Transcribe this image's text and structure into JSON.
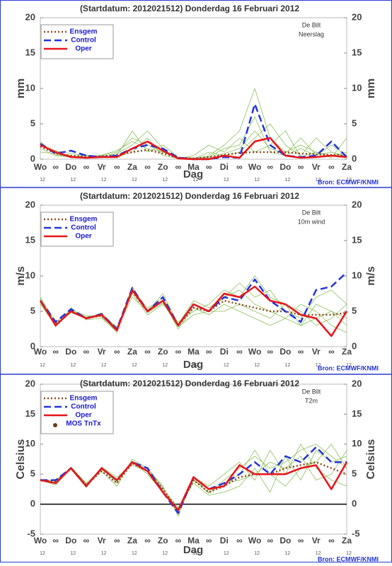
{
  "chart_data": [
    {
      "type": "line",
      "title": "(Startdatum: 2012021512)   Donderdag 16 Februari 2012",
      "location": "De Bilt",
      "variable": "Neerslag",
      "ylabel": "mm",
      "xlabel": "Dag",
      "source": "Bron: ECMWF/KNMI",
      "categories": [
        "Wo",
        "∞",
        "Do",
        "∞",
        "Vr",
        "∞",
        "Za",
        "∞",
        "Zo",
        "∞",
        "Ma",
        "∞",
        "Di",
        "∞",
        "Wo",
        "∞",
        "Do",
        "∞",
        "Vr",
        "∞",
        "Za"
      ],
      "hours": [
        "12",
        null,
        "12",
        null,
        "12",
        null,
        "12",
        null,
        "12",
        null,
        "12",
        null,
        "12",
        null,
        "12",
        null,
        "12",
        null,
        "12",
        null,
        "12"
      ],
      "ylim": [
        0,
        20
      ],
      "yticks": [
        0,
        5,
        10,
        15,
        20
      ],
      "members": {
        "color": "#8cbf5c",
        "values": [
          [
            2,
            1,
            0.5,
            0.3,
            0.5,
            1,
            3,
            2,
            1,
            0.2,
            0,
            0.5,
            2,
            4,
            10,
            3,
            1,
            2,
            1,
            0.5,
            1
          ],
          [
            1.5,
            0.5,
            0.3,
            0.2,
            0.3,
            0.8,
            2,
            4,
            1.5,
            0,
            0,
            1,
            0.5,
            1,
            3,
            5,
            2,
            0.5,
            3,
            1,
            0.3
          ],
          [
            2,
            1.2,
            0.8,
            0.5,
            0.2,
            0.5,
            4,
            1,
            2,
            0.3,
            0.2,
            0.3,
            1.5,
            2,
            6,
            1,
            0.5,
            1.5,
            0.5,
            2,
            0.5
          ],
          [
            1,
            0.8,
            0.2,
            0.6,
            0.4,
            0.3,
            1,
            3,
            0.5,
            0.1,
            0.5,
            2,
            1,
            3,
            1,
            2,
            4,
            0.3,
            1,
            0.2,
            3
          ],
          [
            2.5,
            0.6,
            0.4,
            0.2,
            0.6,
            1.2,
            2.5,
            1.5,
            1,
            0.2,
            0.1,
            0.2,
            0.8,
            1.5,
            4,
            1.5,
            0.8,
            3,
            0.6,
            1,
            0.4
          ]
        ]
      },
      "series": [
        {
          "name": "Ensgem",
          "color": "#8b4a1c",
          "dash": "dotted",
          "values": [
            1.8,
            0.8,
            0.5,
            0.4,
            0.4,
            0.6,
            1,
            1.3,
            0.8,
            0.2,
            0.1,
            0.3,
            0.6,
            0.9,
            1,
            1,
            1,
            0.8,
            0.7,
            0.6,
            0.5
          ]
        },
        {
          "name": "Control",
          "color": "#2233dd",
          "dash": "dashed",
          "values": [
            2.2,
            0.8,
            1.2,
            0.5,
            0.3,
            0.5,
            1.5,
            2,
            1.5,
            0.2,
            0,
            0,
            0.3,
            0.2,
            7.8,
            2,
            0.5,
            0.3,
            0.5,
            2.5,
            0.3
          ]
        },
        {
          "name": "Oper",
          "color": "#e8141a",
          "dash": "solid",
          "values": [
            2,
            1,
            0.3,
            0.2,
            0.3,
            0.3,
            1.5,
            2.5,
            1.2,
            0.1,
            0,
            0,
            0.5,
            0.2,
            2.5,
            3,
            0.5,
            0.2,
            0.3,
            0.5,
            0.3
          ]
        }
      ]
    },
    {
      "type": "line",
      "title": "(Startdatum: 2012021512)   Donderdag 16 Februari 2012",
      "location": "De Bilt",
      "variable": "10m wind",
      "ylabel": "m/s",
      "xlabel": "Dag",
      "source": "Bron: ECMWF/KNMI",
      "categories": [
        "Wo",
        "∞",
        "Do",
        "∞",
        "Vr",
        "∞",
        "Za",
        "∞",
        "Zo",
        "∞",
        "Ma",
        "∞",
        "Di",
        "∞",
        "Wo",
        "∞",
        "Do",
        "∞",
        "Vr",
        "∞",
        "Za"
      ],
      "hours": [
        "12",
        null,
        "12",
        null,
        "12",
        null,
        "12",
        null,
        "12",
        null,
        "12",
        null,
        "12",
        null,
        "12",
        null,
        "12",
        null,
        "12",
        null,
        "12"
      ],
      "ylim": [
        0,
        20
      ],
      "yticks": [
        0,
        5,
        10,
        15,
        20
      ],
      "members": {
        "color": "#8cbf5c",
        "values": [
          [
            6,
            3,
            5,
            4,
            4.5,
            2.5,
            8.5,
            5,
            7,
            3,
            6,
            5,
            7,
            8,
            6,
            5,
            4,
            3,
            6,
            5,
            4
          ],
          [
            7,
            3.5,
            5,
            4.2,
            4.5,
            2.8,
            7.5,
            4.5,
            6,
            3.5,
            5,
            6,
            8,
            7,
            10,
            7,
            6,
            5,
            3,
            4,
            6
          ],
          [
            6.5,
            2.8,
            5.5,
            3.8,
            4,
            2.2,
            8,
            5.5,
            6.5,
            2.5,
            5.5,
            4.5,
            6,
            5,
            4,
            3,
            4,
            6,
            5,
            3,
            2
          ],
          [
            6.2,
            3.2,
            4.8,
            4,
            4.8,
            2.5,
            7,
            5,
            7.5,
            3.2,
            6.5,
            5.5,
            7,
            9,
            7,
            8,
            5,
            4,
            7,
            8,
            6
          ],
          [
            6.8,
            3,
            5.2,
            4.4,
            4.2,
            2,
            8.2,
            4.8,
            6.2,
            2.8,
            4.5,
            5,
            5,
            6,
            5,
            4,
            6,
            3,
            4,
            5,
            3
          ]
        ]
      },
      "series": [
        {
          "name": "Ensgem",
          "color": "#8b4a1c",
          "dash": "dotted",
          "values": [
            6.5,
            3.2,
            5,
            4,
            4.4,
            2.5,
            7.8,
            5,
            6.5,
            3,
            5.5,
            5,
            6.5,
            6,
            5.5,
            5,
            5,
            4.5,
            4.5,
            4.5,
            4.8
          ]
        },
        {
          "name": "Control",
          "color": "#2233dd",
          "dash": "dashed",
          "values": [
            6.5,
            3.5,
            5.3,
            4,
            4.6,
            2.5,
            8.3,
            5,
            7,
            3,
            6,
            5,
            7,
            6.5,
            9.5,
            6.5,
            5,
            3.5,
            8,
            8.5,
            10.5
          ]
        },
        {
          "name": "Oper",
          "color": "#e8141a",
          "dash": "solid",
          "values": [
            6.5,
            3,
            5,
            4,
            4.5,
            2.3,
            8,
            5,
            6.5,
            3,
            6,
            5,
            7.5,
            7,
            8.5,
            6.5,
            6,
            4.5,
            4,
            1.5,
            5
          ]
        }
      ]
    },
    {
      "type": "line",
      "title": "(Startdatum: 2012021512)   Donderdag 16 Februari 2012",
      "location": "De Bilt",
      "variable": "T2m",
      "ylabel": "Celsius",
      "xlabel": "Dag",
      "source": "Bron: ECMWF/KNMI",
      "categories": [
        "Wo",
        "∞",
        "Do",
        "∞",
        "Vr",
        "∞",
        "Za",
        "∞",
        "Zo",
        "∞",
        "Ma",
        "∞",
        "Di",
        "∞",
        "Wo",
        "∞",
        "Do",
        "∞",
        "Vr",
        "∞",
        "Za"
      ],
      "hours": [
        "12",
        null,
        "12",
        null,
        "12",
        null,
        "12",
        null,
        "12",
        null,
        "12",
        null,
        "12",
        null,
        "12",
        null,
        "12",
        null,
        "12",
        null,
        "12"
      ],
      "ylim": [
        -5,
        20
      ],
      "yticks": [
        -5,
        0,
        5,
        10,
        15,
        20
      ],
      "zero_line": true,
      "members": {
        "color": "#8cbf5c",
        "values": [
          [
            4,
            4,
            6,
            3,
            6,
            4,
            7,
            5,
            2,
            -1,
            4,
            2,
            4,
            6,
            8,
            6,
            7,
            9,
            10,
            8,
            6
          ],
          [
            4.2,
            3.5,
            6.2,
            3.5,
            5.5,
            3,
            7.5,
            6,
            3,
            -2,
            4.5,
            3,
            5,
            7,
            4,
            9,
            5,
            10,
            6,
            4,
            3
          ],
          [
            3.8,
            4,
            5.8,
            2.8,
            6.2,
            4.5,
            6.5,
            5.5,
            2.5,
            -0.5,
            3.5,
            1.5,
            2,
            3,
            6,
            2,
            8,
            4,
            9,
            7,
            8
          ],
          [
            4,
            3.2,
            6,
            3.2,
            5.8,
            3.8,
            7,
            5,
            2.2,
            -1.5,
            4,
            2.5,
            3,
            5,
            9,
            5,
            3,
            6,
            7,
            10,
            6
          ],
          [
            4.1,
            3.8,
            6.1,
            3.4,
            6,
            3.5,
            7.2,
            5.8,
            2.8,
            -1.2,
            4.2,
            1.8,
            3.5,
            4,
            5,
            7,
            6,
            8,
            4,
            5,
            9
          ]
        ]
      },
      "series": [
        {
          "name": "Ensgem",
          "color": "#8b4a1c",
          "dash": "dotted",
          "values": [
            4,
            3.8,
            6,
            3.2,
            5.5,
            3.5,
            6.8,
            5.5,
            2.5,
            -1,
            4,
            2,
            3,
            4.5,
            5,
            5,
            6,
            6.5,
            7,
            6,
            5
          ]
        },
        {
          "name": "Control",
          "color": "#2233dd",
          "dash": "dashed",
          "values": [
            4,
            4,
            6,
            3,
            6,
            4,
            7,
            6,
            2,
            -1.5,
            4.5,
            2.5,
            3.5,
            5,
            7,
            5,
            8,
            7,
            9.5,
            7,
            7
          ]
        },
        {
          "name": "Oper",
          "color": "#e8141a",
          "dash": "solid",
          "values": [
            4,
            3.5,
            6,
            3,
            6,
            4,
            7,
            5.5,
            2,
            -1,
            4.5,
            2.5,
            3,
            6.5,
            5,
            5,
            5,
            6,
            6.5,
            2.5,
            7
          ]
        },
        {
          "name": "MOS TnTx",
          "color": "#6b3a1a",
          "dash": "none",
          "marker": "dot",
          "values": [
            null,
            null,
            null,
            null,
            null,
            null,
            null,
            null,
            null,
            null,
            null,
            null,
            null,
            null,
            null,
            null,
            null,
            null,
            null,
            null,
            null
          ]
        }
      ]
    }
  ]
}
